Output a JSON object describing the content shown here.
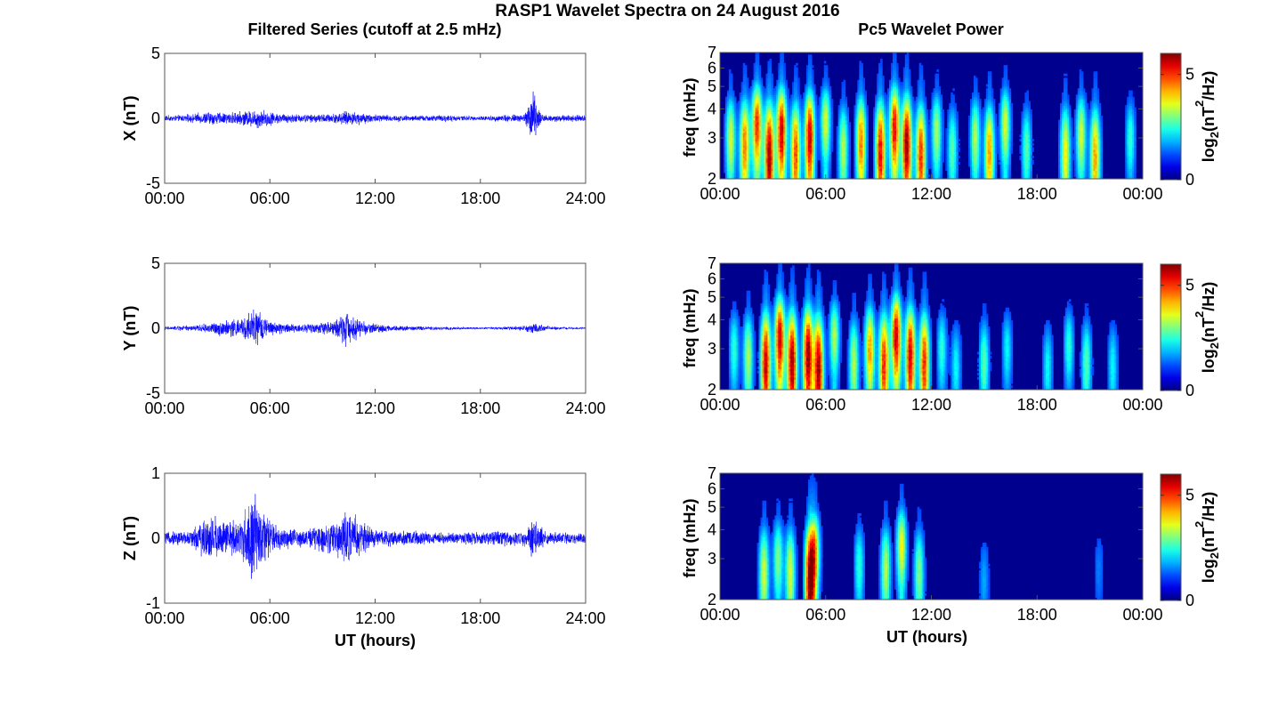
{
  "figure": {
    "title": "RASP1 Wavelet Spectra on 24 August 2016",
    "left_title": "Filtered Series (cutoff at 2.5 mHz)",
    "right_title": "Pc5 Wavelet Power"
  },
  "colors": {
    "series": "#0000ff",
    "background_spectra": "#00008f"
  },
  "chart_data": [
    {
      "type": "line",
      "name": "x-series",
      "ylabel": "X (nT)",
      "xlabel": "",
      "ylim": [
        -5,
        5
      ],
      "yticks": [
        "5",
        "0",
        "-5"
      ],
      "xlim": [
        0,
        24
      ],
      "xticks": [
        "00:00",
        "06:00",
        "12:00",
        "18:00",
        "24:00"
      ],
      "amplitude_envelope": [
        {
          "t": 0,
          "a": 0.25
        },
        {
          "t": 1.5,
          "a": 0.35
        },
        {
          "t": 2.5,
          "a": 0.6
        },
        {
          "t": 3.5,
          "a": 0.5
        },
        {
          "t": 4.5,
          "a": 0.6
        },
        {
          "t": 5.3,
          "a": 0.9
        },
        {
          "t": 6.5,
          "a": 0.45
        },
        {
          "t": 8,
          "a": 0.35
        },
        {
          "t": 9.5,
          "a": 0.4
        },
        {
          "t": 10.5,
          "a": 0.65
        },
        {
          "t": 12,
          "a": 0.35
        },
        {
          "t": 14,
          "a": 0.25
        },
        {
          "t": 16,
          "a": 0.3
        },
        {
          "t": 18,
          "a": 0.2
        },
        {
          "t": 20.5,
          "a": 0.4
        },
        {
          "t": 21,
          "a": 2.5
        },
        {
          "t": 21.5,
          "a": 0.35
        },
        {
          "t": 24,
          "a": 0.25
        }
      ]
    },
    {
      "type": "line",
      "name": "y-series",
      "ylabel": "Y (nT)",
      "xlabel": "",
      "ylim": [
        -5,
        5
      ],
      "yticks": [
        "5",
        "0",
        "-5"
      ],
      "xlim": [
        0,
        24
      ],
      "xticks": [
        "00:00",
        "06:00",
        "12:00",
        "18:00",
        "24:00"
      ],
      "amplitude_envelope": [
        {
          "t": 0,
          "a": 0.15
        },
        {
          "t": 2,
          "a": 0.3
        },
        {
          "t": 3,
          "a": 0.6
        },
        {
          "t": 4.5,
          "a": 0.9
        },
        {
          "t": 5.1,
          "a": 1.8
        },
        {
          "t": 6,
          "a": 0.6
        },
        {
          "t": 7.5,
          "a": 0.35
        },
        {
          "t": 9.5,
          "a": 0.6
        },
        {
          "t": 10.3,
          "a": 1.5
        },
        {
          "t": 11.5,
          "a": 0.5
        },
        {
          "t": 13,
          "a": 0.25
        },
        {
          "t": 16,
          "a": 0.15
        },
        {
          "t": 18,
          "a": 0.1
        },
        {
          "t": 20.5,
          "a": 0.2
        },
        {
          "t": 21,
          "a": 0.5
        },
        {
          "t": 22,
          "a": 0.15
        },
        {
          "t": 24,
          "a": 0.1
        }
      ]
    },
    {
      "type": "line",
      "name": "z-series",
      "ylabel": "Z (nT)",
      "xlabel": "UT (hours)",
      "ylim": [
        -1,
        1
      ],
      "yticks": [
        "1",
        "0",
        "-1"
      ],
      "xlim": [
        0,
        24
      ],
      "xticks": [
        "00:00",
        "06:00",
        "12:00",
        "18:00",
        "24:00"
      ],
      "amplitude_envelope": [
        {
          "t": 0,
          "a": 0.1
        },
        {
          "t": 1.5,
          "a": 0.15
        },
        {
          "t": 2.7,
          "a": 0.45
        },
        {
          "t": 3.5,
          "a": 0.3
        },
        {
          "t": 4.5,
          "a": 0.4
        },
        {
          "t": 5.0,
          "a": 0.85
        },
        {
          "t": 5.5,
          "a": 0.5
        },
        {
          "t": 6.5,
          "a": 0.2
        },
        {
          "t": 8,
          "a": 0.15
        },
        {
          "t": 9.5,
          "a": 0.3
        },
        {
          "t": 10.3,
          "a": 0.5
        },
        {
          "t": 11,
          "a": 0.35
        },
        {
          "t": 12,
          "a": 0.15
        },
        {
          "t": 16,
          "a": 0.1
        },
        {
          "t": 20.5,
          "a": 0.15
        },
        {
          "t": 21,
          "a": 0.35
        },
        {
          "t": 22,
          "a": 0.1
        },
        {
          "t": 24,
          "a": 0.08
        }
      ]
    },
    {
      "type": "heatmap",
      "name": "x-spectrum",
      "ylabel": "freq (mHz)",
      "xlabel": "",
      "yscale": "log",
      "ylim": [
        2,
        7
      ],
      "yticks": [
        "2",
        "3",
        "4",
        "5",
        "6",
        "7"
      ],
      "xlim": [
        0,
        24
      ],
      "xticks": [
        "00:00",
        "06:00",
        "12:00",
        "18:00",
        "00:00"
      ],
      "colorbar": {
        "label": "log2(nT^2/Hz)",
        "label_main": "log",
        "label_sub": "2",
        "label_rest_a": "(nT",
        "label_sup": "2",
        "label_rest_b": "/Hz)",
        "range": [
          0,
          6
        ],
        "ticks": [
          "5",
          "0"
        ]
      },
      "bursts": [
        {
          "t": 0.6,
          "f": 3.0,
          "p": 0.55
        },
        {
          "t": 1.4,
          "f": 2.8,
          "p": 0.75
        },
        {
          "t": 2.1,
          "f": 3.4,
          "p": 0.85
        },
        {
          "t": 2.8,
          "f": 2.5,
          "p": 1.0
        },
        {
          "t": 3.5,
          "f": 3.2,
          "p": 0.95
        },
        {
          "t": 4.3,
          "f": 2.6,
          "p": 0.8
        },
        {
          "t": 5.1,
          "f": 3.0,
          "p": 0.95
        },
        {
          "t": 6.0,
          "f": 3.5,
          "p": 0.55
        },
        {
          "t": 7.0,
          "f": 2.7,
          "p": 0.5
        },
        {
          "t": 8.0,
          "f": 2.9,
          "p": 0.75
        },
        {
          "t": 9.1,
          "f": 2.6,
          "p": 0.9
        },
        {
          "t": 9.9,
          "f": 3.3,
          "p": 0.9
        },
        {
          "t": 10.6,
          "f": 2.8,
          "p": 1.0
        },
        {
          "t": 11.4,
          "f": 2.5,
          "p": 0.85
        },
        {
          "t": 12.3,
          "f": 3.2,
          "p": 0.5
        },
        {
          "t": 13.2,
          "f": 2.7,
          "p": 0.4
        },
        {
          "t": 14.5,
          "f": 3.0,
          "p": 0.5
        },
        {
          "t": 15.3,
          "f": 2.6,
          "p": 0.7
        },
        {
          "t": 16.2,
          "f": 3.4,
          "p": 0.55
        },
        {
          "t": 17.4,
          "f": 2.7,
          "p": 0.4
        },
        {
          "t": 19.6,
          "f": 2.6,
          "p": 0.6
        },
        {
          "t": 20.5,
          "f": 3.1,
          "p": 0.55
        },
        {
          "t": 21.3,
          "f": 2.5,
          "p": 0.7
        },
        {
          "t": 23.3,
          "f": 3.0,
          "p": 0.35
        }
      ]
    },
    {
      "type": "heatmap",
      "name": "y-spectrum",
      "ylabel": "freq (mHz)",
      "xlabel": "",
      "yscale": "log",
      "ylim": [
        2,
        7
      ],
      "yticks": [
        "2",
        "3",
        "4",
        "5",
        "6",
        "7"
      ],
      "xlim": [
        0,
        24
      ],
      "xticks": [
        "00:00",
        "06:00",
        "12:00",
        "18:00",
        "00:00"
      ],
      "colorbar": {
        "label": "log2(nT^2/Hz)",
        "label_main": "log",
        "label_sub": "2",
        "label_rest_a": "(nT",
        "label_sup": "2",
        "label_rest_b": "/Hz)",
        "range": [
          0,
          6
        ],
        "ticks": [
          "5",
          "0"
        ]
      },
      "bursts": [
        {
          "t": 0.8,
          "f": 3.0,
          "p": 0.35
        },
        {
          "t": 1.6,
          "f": 2.8,
          "p": 0.5
        },
        {
          "t": 2.6,
          "f": 2.6,
          "p": 0.95
        },
        {
          "t": 3.4,
          "f": 3.3,
          "p": 0.95
        },
        {
          "t": 4.1,
          "f": 2.6,
          "p": 1.0
        },
        {
          "t": 5.0,
          "f": 2.8,
          "p": 1.0
        },
        {
          "t": 5.6,
          "f": 2.4,
          "p": 1.0
        },
        {
          "t": 6.5,
          "f": 3.4,
          "p": 0.5
        },
        {
          "t": 7.6,
          "f": 2.6,
          "p": 0.5
        },
        {
          "t": 8.5,
          "f": 3.0,
          "p": 0.7
        },
        {
          "t": 9.3,
          "f": 2.6,
          "p": 0.85
        },
        {
          "t": 10.0,
          "f": 3.4,
          "p": 0.95
        },
        {
          "t": 10.8,
          "f": 2.8,
          "p": 0.95
        },
        {
          "t": 11.6,
          "f": 2.6,
          "p": 0.85
        },
        {
          "t": 12.6,
          "f": 3.0,
          "p": 0.35
        },
        {
          "t": 13.4,
          "f": 2.5,
          "p": 0.3
        },
        {
          "t": 15.0,
          "f": 2.6,
          "p": 0.4
        },
        {
          "t": 16.3,
          "f": 3.0,
          "p": 0.3
        },
        {
          "t": 18.6,
          "f": 2.5,
          "p": 0.3
        },
        {
          "t": 19.8,
          "f": 3.1,
          "p": 0.35
        },
        {
          "t": 20.8,
          "f": 2.6,
          "p": 0.4
        },
        {
          "t": 22.3,
          "f": 2.5,
          "p": 0.3
        }
      ]
    },
    {
      "type": "heatmap",
      "name": "z-spectrum",
      "ylabel": "freq (mHz)",
      "xlabel": "UT (hours)",
      "yscale": "log",
      "ylim": [
        2,
        7
      ],
      "yticks": [
        "2",
        "3",
        "4",
        "5",
        "6",
        "7"
      ],
      "xlim": [
        0,
        24
      ],
      "xticks": [
        "00:00",
        "06:00",
        "12:00",
        "18:00",
        "00:00"
      ],
      "colorbar": {
        "label": "log2(nT^2/Hz)",
        "label_main": "log",
        "label_sub": "2",
        "label_rest_a": "(nT",
        "label_sup": "2",
        "label_rest_b": "/Hz)",
        "range": [
          0,
          6
        ],
        "ticks": [
          "5",
          "0"
        ]
      },
      "bursts": [
        {
          "t": 2.5,
          "f": 2.6,
          "p": 0.55
        },
        {
          "t": 3.3,
          "f": 3.0,
          "p": 0.45
        },
        {
          "t": 4.0,
          "f": 2.6,
          "p": 0.55
        },
        {
          "t": 5.1,
          "f": 2.4,
          "p": 0.95
        },
        {
          "t": 5.4,
          "f": 3.2,
          "p": 0.6
        },
        {
          "t": 7.9,
          "f": 2.8,
          "p": 0.35
        },
        {
          "t": 9.4,
          "f": 2.7,
          "p": 0.5
        },
        {
          "t": 10.3,
          "f": 3.4,
          "p": 0.6
        },
        {
          "t": 11.3,
          "f": 2.6,
          "p": 0.45
        },
        {
          "t": 15.0,
          "f": 2.4,
          "p": 0.2
        },
        {
          "t": 21.5,
          "f": 2.7,
          "p": 0.15
        }
      ]
    }
  ]
}
